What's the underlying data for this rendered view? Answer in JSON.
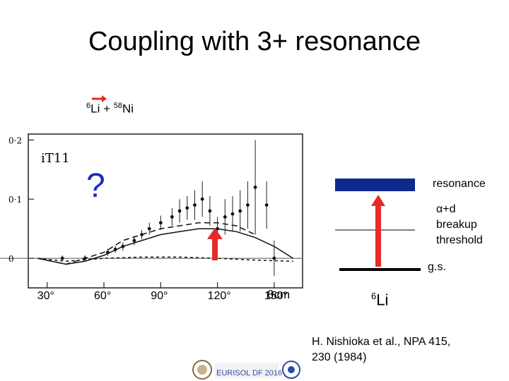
{
  "slide": {
    "title": "Coupling with 3+ resonance",
    "reaction": {
      "projectile_mass": "6",
      "projectile": "Li",
      "plus": " + ",
      "target_mass": "58",
      "target": "Ni"
    },
    "question_mark": "?",
    "level_scheme": {
      "resonance_label": "resonance",
      "threshold_label_lines": [
        "α+d",
        "breakup",
        "threshold"
      ],
      "gs_label": "g.s.",
      "nucleus_mass": "6",
      "nucleus": "Li"
    },
    "citation": {
      "line1": "H. Nishioka et al., NPA 415,",
      "line2": "230 (1984)"
    },
    "footer_logo_text": "EURISOL DF 2016"
  },
  "chart_data": {
    "type": "scatter",
    "ylabel": "iT11",
    "xlabel": "θcm",
    "x_ticks": [
      "30°",
      "60°",
      "90°",
      "120°",
      "150°"
    ],
    "y_ticks": [
      "0·2",
      "0·1",
      "0"
    ],
    "xlim": [
      20,
      165
    ],
    "ylim": [
      -0.05,
      0.21
    ],
    "series": [
      {
        "style": "points",
        "x": [
          38,
          50,
          62,
          66,
          70,
          76,
          80,
          84,
          90,
          96,
          100,
          104,
          108,
          112,
          116,
          120,
          124,
          128,
          132,
          136,
          140,
          146,
          150
        ],
        "y": [
          0.0,
          0.0,
          0.01,
          0.015,
          0.02,
          0.03,
          0.04,
          0.05,
          0.06,
          0.07,
          0.08,
          0.085,
          0.09,
          0.1,
          0.08,
          0.05,
          0.07,
          0.075,
          0.08,
          0.09,
          0.12,
          0.09,
          0.0
        ],
        "err": [
          0.005,
          0.005,
          0.006,
          0.006,
          0.007,
          0.008,
          0.008,
          0.01,
          0.012,
          0.015,
          0.02,
          0.02,
          0.025,
          0.03,
          0.025,
          0.02,
          0.03,
          0.03,
          0.035,
          0.04,
          0.08,
          0.04,
          0.03
        ]
      },
      {
        "style": "solid",
        "x": [
          25,
          40,
          50,
          60,
          70,
          80,
          90,
          100,
          110,
          120,
          130,
          140,
          150,
          160
        ],
        "y": [
          0.0,
          -0.01,
          -0.005,
          0.005,
          0.02,
          0.03,
          0.04,
          0.045,
          0.05,
          0.05,
          0.045,
          0.035,
          0.02,
          0.0
        ]
      },
      {
        "style": "dashed",
        "x": [
          25,
          40,
          50,
          60,
          70,
          80,
          90,
          100,
          110,
          120,
          130,
          140
        ],
        "y": [
          0.0,
          -0.01,
          0.0,
          0.01,
          0.03,
          0.04,
          0.05,
          0.055,
          0.06,
          0.06,
          0.055,
          0.04
        ]
      },
      {
        "style": "dashed-flat",
        "x": [
          25,
          40,
          60,
          80,
          100,
          120,
          140,
          160
        ],
        "y": [
          0.0,
          -0.005,
          0.0,
          0.002,
          0.002,
          0.0,
          -0.003,
          -0.005
        ]
      }
    ]
  },
  "colors": {
    "accent_red": "#e52a2a",
    "resonance_blue": "#0f2a8c",
    "question_blue": "#1a2fb8"
  }
}
